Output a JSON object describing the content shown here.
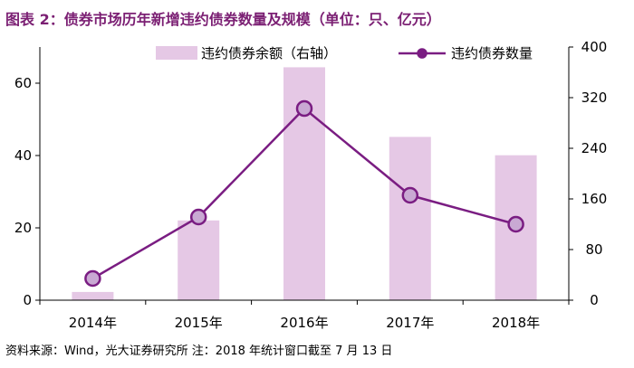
{
  "title": "图表 2：债券市场历年新增违约债券数量及规模（单位：只、亿元）",
  "source": "资料来源：Wind，光大证券研究所    注：2018 年统计窗口截至 7 月 13 日",
  "colors": {
    "title": "#7B1F73",
    "bar": "#E5C8E5",
    "line": "#7A1D82",
    "marker_fill": "#C9A9D3",
    "axis": "#000000"
  },
  "chart_data": {
    "type": "bar+line",
    "categories": [
      "2014年",
      "2015年",
      "2016年",
      "2017年",
      "2018年"
    ],
    "series": [
      {
        "name": "违约债券余额（右轴）",
        "type": "bar",
        "axis": "right",
        "values": [
          13,
          126,
          368,
          258,
          229
        ]
      },
      {
        "name": "违约债券数量",
        "type": "line",
        "axis": "left",
        "values": [
          6,
          23,
          53,
          29,
          21
        ]
      }
    ],
    "left_axis": {
      "ylim": [
        0,
        70
      ],
      "ticks": [
        "0",
        "20",
        "40",
        "60"
      ],
      "tick_values": [
        0,
        20,
        40,
        60
      ]
    },
    "right_axis": {
      "ylim": [
        0,
        400
      ],
      "ticks": [
        "0",
        "80",
        "160",
        "240",
        "320",
        "400"
      ],
      "tick_values": [
        0,
        80,
        160,
        240,
        320,
        400
      ]
    },
    "legend_position": "top"
  }
}
